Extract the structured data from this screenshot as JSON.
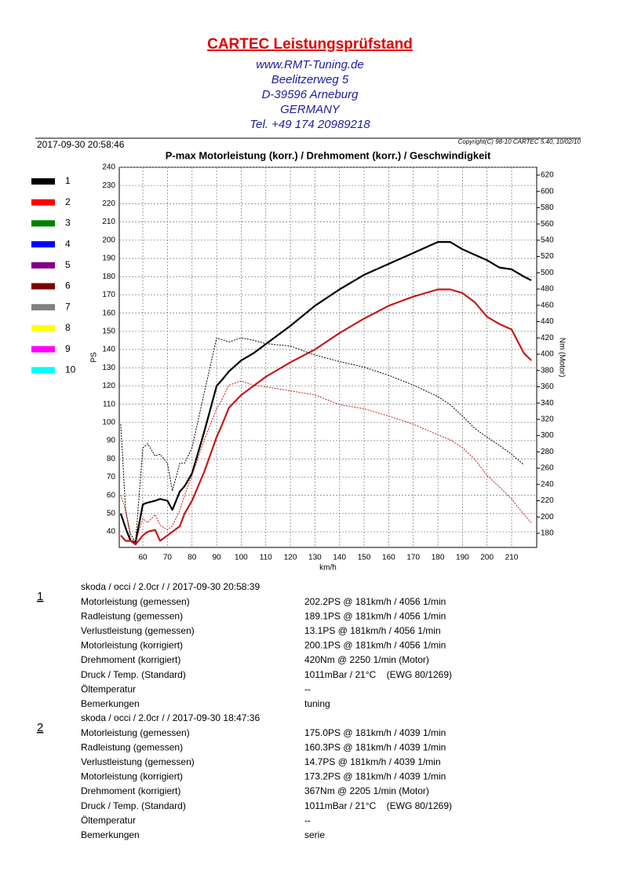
{
  "header": {
    "title": "CARTEC Leistungsprüfstand",
    "lines": [
      "www.RMT-Tuning.de",
      "Beelitzerweg 5",
      "D-39596 Arneburg",
      "GERMANY",
      "Tel. +49 174 20989218"
    ]
  },
  "date": "2017-09-30 20:58:46",
  "copyright": "Copyright(C) 98-10 CARTEC 5.40, 10/02/10",
  "chart_data": {
    "type": "line",
    "title": "P-max Motorleistung (korr.) / Drehmoment (korr.) / Geschwindigkeit",
    "x_label": "km/h",
    "y_label": "PS",
    "y2_label": "Nm (Motor)",
    "x": [
      51,
      53,
      55,
      57,
      60,
      62,
      65,
      67,
      70,
      72,
      75,
      77,
      80,
      85,
      90,
      92,
      95,
      100,
      105,
      110,
      120,
      130,
      140,
      150,
      160,
      170,
      180,
      185,
      190,
      195,
      200,
      205,
      210,
      215,
      218
    ],
    "series": [
      {
        "color": "#000000",
        "values": [
          50,
          42,
          35,
          34,
          55,
          56,
          57,
          58,
          57,
          52,
          62,
          65,
          72,
          95,
          120,
          123,
          128,
          134,
          138,
          143,
          153,
          164,
          173,
          181,
          187,
          193,
          199,
          199,
          195,
          192,
          189,
          185,
          184,
          180,
          178
        ]
      },
      {
        "color": "#c41a1a",
        "values": [
          38,
          35,
          35,
          33,
          38,
          40,
          41,
          35,
          38,
          40,
          43,
          50,
          57,
          73,
          92,
          98,
          108,
          115,
          120,
          125,
          133,
          140,
          149,
          157,
          164,
          169,
          173,
          173,
          171,
          166,
          158,
          154,
          151,
          138,
          134
        ]
      },
      {
        "color": "#000000",
        "axis": "y2",
        "values": [
          314,
          208,
          179,
          169,
          285,
          290,
          275,
          277,
          266,
          232,
          266,
          266,
          285,
          353,
          420,
          418,
          415,
          420,
          417,
          413,
          410,
          399,
          391,
          384,
          374,
          362,
          348,
          338,
          324,
          309,
          298,
          288,
          277,
          264,
          null
        ]
      },
      {
        "color": "#c41a1a",
        "axis": "y2",
        "values": [
          227,
          208,
          174,
          169,
          198,
          193,
          203,
          190,
          184,
          189,
          208,
          227,
          251,
          295,
          333,
          343,
          362,
          367,
          362,
          360,
          355,
          350,
          338,
          333,
          324,
          314,
          301,
          295,
          285,
          271,
          251,
          237,
          222,
          203,
          193
        ]
      }
    ],
    "legend": [
      {
        "name": "1",
        "color": "#000000"
      },
      {
        "name": "2",
        "color": "#ff0000"
      },
      {
        "name": "3",
        "color": "#008000"
      },
      {
        "name": "4",
        "color": "#0000ff"
      },
      {
        "name": "5",
        "color": "#800080"
      },
      {
        "name": "6",
        "color": "#800000"
      },
      {
        "name": "7",
        "color": "#808080"
      },
      {
        "name": "8",
        "color": "#ffff00"
      },
      {
        "name": "9",
        "color": "#ff00ff"
      },
      {
        "name": "10",
        "color": "#00ffff"
      }
    ],
    "xlim": [
      50.4,
      220.2
    ],
    "ylim": [
      31.4,
      240
    ],
    "y2lim": [
      162.6,
      629.6
    ],
    "xticks": [
      60,
      70,
      80,
      90,
      100,
      110,
      120,
      130,
      140,
      150,
      160,
      170,
      180,
      190,
      200,
      210
    ],
    "yticks": [
      40,
      50,
      60,
      70,
      80,
      90,
      100,
      110,
      120,
      130,
      140,
      150,
      160,
      170,
      180,
      190,
      200,
      210,
      220,
      230,
      240
    ],
    "y2ticks": [
      180,
      200,
      220,
      240,
      260,
      280,
      300,
      320,
      340,
      360,
      380,
      400,
      420,
      440,
      460,
      480,
      500,
      520,
      540,
      560,
      580,
      600,
      620
    ],
    "grid": true
  },
  "runs": [
    {
      "number": "1",
      "title": "skoda / occi / 2.0cr /  / 2017-09-30 20:58:39",
      "rows": [
        [
          "Motorleistung (gemessen)",
          "202.2PS @ 181km/h / 4056 1/min"
        ],
        [
          "Radleistung (gemessen)",
          "189.1PS @ 181km/h / 4056 1/min"
        ],
        [
          "Verlustleistung (gemessen)",
          "13.1PS @ 181km/h / 4056 1/min"
        ],
        [
          "Motorleistung (korrigiert)",
          "200.1PS @ 181km/h / 4056 1/min"
        ],
        [
          "Drehmoment (korrigiert)",
          "420Nm @ 2250 1/min (Motor)"
        ],
        [
          "Druck / Temp. (Standard)",
          "1011mBar / 21°C    (EWG 80/1269)"
        ],
        [
          "Öltemperatur",
          "--"
        ],
        [
          "Bemerkungen",
          "tuning"
        ]
      ]
    },
    {
      "number": "2",
      "title": "skoda / occi / 2.0cr /  / 2017-09-30 18:47:36",
      "rows": [
        [
          "Motorleistung (gemessen)",
          "175.0PS @ 181km/h / 4039 1/min"
        ],
        [
          "Radleistung (gemessen)",
          "160.3PS @ 181km/h / 4039 1/min"
        ],
        [
          "Verlustleistung (gemessen)",
          "14.7PS @ 181km/h / 4039 1/min"
        ],
        [
          "Motorleistung (korrigiert)",
          "173.2PS @ 181km/h / 4039 1/min"
        ],
        [
          "Drehmoment (korrigiert)",
          "367Nm @ 2205 1/min (Motor)"
        ],
        [
          "Druck / Temp. (Standard)",
          "1011mBar / 21°C    (EWG 80/1269)"
        ],
        [
          "Öltemperatur",
          "--"
        ],
        [
          "Bemerkungen",
          "serie"
        ]
      ]
    }
  ]
}
